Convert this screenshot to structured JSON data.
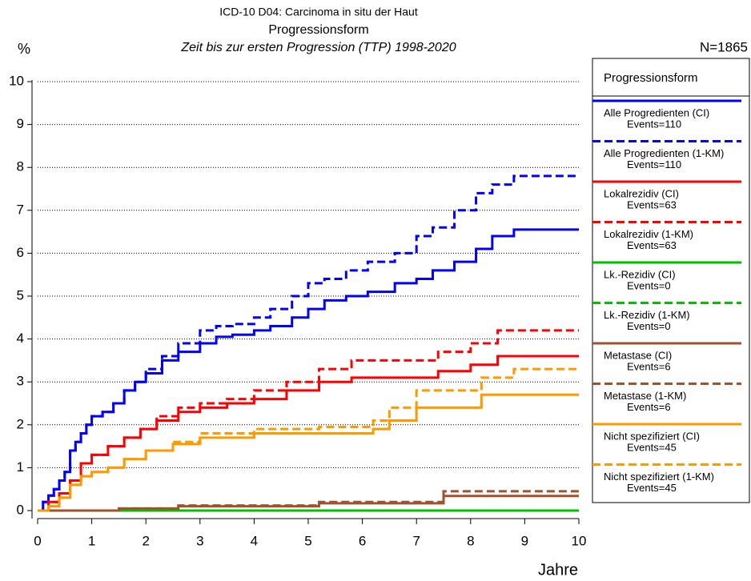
{
  "chart_data": {
    "type": "step",
    "title": "ICD-10 D04: Carcinoma in situ der Haut",
    "subtitle": "Progressionsform",
    "subtitle2": "Zeit bis zur ersten Progression (TTP) 1998-2020",
    "ylabel": "%",
    "xlabel": "Jahre",
    "n_label": "N=1865",
    "legend_title": "Progressionsform",
    "grid": true,
    "xlim": [
      0,
      10
    ],
    "xticks": [
      0,
      1,
      2,
      3,
      4,
      5,
      6,
      7,
      8,
      9,
      10
    ],
    "ylim": [
      0,
      10
    ],
    "yticks": [
      0,
      1,
      2,
      3,
      4,
      5,
      6,
      7,
      8,
      9,
      10
    ],
    "series": [
      {
        "name": "Alle Progredienten (CI)",
        "events": "Events=110",
        "color": "#0000ff",
        "dash": false,
        "x": [
          0,
          0.1,
          0.2,
          0.3,
          0.4,
          0.5,
          0.6,
          0.7,
          0.8,
          0.9,
          1.0,
          1.2,
          1.4,
          1.6,
          1.8,
          2.0,
          2.3,
          2.6,
          3.0,
          3.3,
          3.6,
          4.0,
          4.3,
          4.7,
          5.0,
          5.3,
          5.7,
          6.1,
          6.6,
          7.0,
          7.3,
          7.7,
          8.1,
          8.4,
          8.8,
          10
        ],
        "values": [
          0,
          0.2,
          0.35,
          0.5,
          0.7,
          0.9,
          1.4,
          1.6,
          1.8,
          2.0,
          2.2,
          2.3,
          2.5,
          2.8,
          3.0,
          3.2,
          3.5,
          3.7,
          3.9,
          4.05,
          4.1,
          4.2,
          4.3,
          4.5,
          4.7,
          4.9,
          5.0,
          5.1,
          5.3,
          5.4,
          5.6,
          5.8,
          6.1,
          6.4,
          6.55,
          6.55
        ]
      },
      {
        "name": "Alle Progredienten (1-KM)",
        "events": "Events=110",
        "color": "#0000ff",
        "dash": true,
        "x": [
          0,
          0.1,
          0.2,
          0.3,
          0.4,
          0.5,
          0.6,
          0.7,
          0.8,
          0.9,
          1.0,
          1.2,
          1.4,
          1.6,
          1.8,
          2.0,
          2.3,
          2.6,
          3.0,
          3.3,
          3.6,
          4.0,
          4.3,
          4.7,
          5.0,
          5.3,
          5.7,
          6.1,
          6.6,
          7.0,
          7.3,
          7.7,
          8.1,
          8.4,
          8.8,
          10
        ],
        "values": [
          0,
          0.2,
          0.35,
          0.5,
          0.7,
          0.9,
          1.4,
          1.6,
          1.8,
          2.0,
          2.2,
          2.3,
          2.5,
          2.8,
          3.0,
          3.3,
          3.6,
          3.9,
          4.2,
          4.3,
          4.35,
          4.5,
          4.7,
          5.0,
          5.3,
          5.4,
          5.6,
          5.8,
          6.0,
          6.4,
          6.6,
          7.0,
          7.4,
          7.6,
          7.8,
          7.8
        ]
      },
      {
        "name": "Lokalrezidiv (CI)",
        "events": "Events=63",
        "color": "#ff0000",
        "dash": false,
        "x": [
          0,
          0.2,
          0.4,
          0.6,
          0.8,
          1.0,
          1.3,
          1.6,
          1.9,
          2.2,
          2.6,
          3.0,
          3.5,
          4.0,
          4.6,
          5.2,
          5.8,
          6.5,
          7.4,
          8.0,
          8.5,
          10
        ],
        "values": [
          0,
          0.2,
          0.4,
          0.7,
          1.1,
          1.3,
          1.5,
          1.7,
          1.9,
          2.1,
          2.3,
          2.4,
          2.5,
          2.6,
          2.8,
          3.0,
          3.1,
          3.1,
          3.25,
          3.4,
          3.6,
          3.6
        ]
      },
      {
        "name": "Lokalrezidiv (1-KM)",
        "events": "Events=63",
        "color": "#ff0000",
        "dash": true,
        "x": [
          0,
          0.2,
          0.4,
          0.6,
          0.8,
          1.0,
          1.3,
          1.6,
          1.9,
          2.2,
          2.6,
          3.0,
          3.5,
          4.0,
          4.6,
          5.2,
          5.8,
          6.5,
          7.4,
          8.0,
          8.5,
          10
        ],
        "values": [
          0,
          0.2,
          0.4,
          0.7,
          1.1,
          1.3,
          1.5,
          1.7,
          1.9,
          2.2,
          2.4,
          2.5,
          2.6,
          2.8,
          3.0,
          3.3,
          3.5,
          3.5,
          3.7,
          3.9,
          4.2,
          4.2
        ]
      },
      {
        "name": "Lk.-Rezidiv (CI)",
        "events": "Events=0",
        "color": "#00c000",
        "dash": false,
        "x": [
          0,
          10
        ],
        "values": [
          0,
          0
        ]
      },
      {
        "name": "Lk.-Rezidiv (1-KM)",
        "events": "Events=0",
        "color": "#00c000",
        "dash": true,
        "x": [
          0,
          10
        ],
        "values": [
          0,
          0
        ]
      },
      {
        "name": "Metastase (CI)",
        "events": "Events=6",
        "color": "#a0522d",
        "dash": false,
        "x": [
          0,
          1.5,
          2.6,
          5.2,
          7.5,
          10
        ],
        "values": [
          0,
          0.05,
          0.1,
          0.17,
          0.34,
          0.34
        ]
      },
      {
        "name": "Metastase (1-KM)",
        "events": "Events=6",
        "color": "#a0522d",
        "dash": true,
        "x": [
          0,
          1.5,
          2.6,
          5.2,
          7.5,
          10
        ],
        "values": [
          0,
          0.05,
          0.12,
          0.2,
          0.45,
          0.45
        ]
      },
      {
        "name": "Nicht spezifiziert (CI)",
        "events": "Events=45",
        "color": "#ff9900",
        "dash": false,
        "x": [
          0,
          0.2,
          0.4,
          0.6,
          0.8,
          1.0,
          1.3,
          1.6,
          2.0,
          2.5,
          3.0,
          4.0,
          5.2,
          6.2,
          6.5,
          7.0,
          8.2,
          10
        ],
        "values": [
          0,
          0.1,
          0.3,
          0.6,
          0.8,
          0.9,
          1.0,
          1.2,
          1.4,
          1.55,
          1.7,
          1.8,
          1.8,
          1.9,
          2.1,
          2.4,
          2.7,
          2.7
        ]
      },
      {
        "name": "Nicht spezifiziert (1-KM)",
        "events": "Events=45",
        "color": "#ff9900",
        "dash": true,
        "x": [
          0,
          0.2,
          0.4,
          0.6,
          0.8,
          1.0,
          1.3,
          1.6,
          2.0,
          2.5,
          3.0,
          4.0,
          5.2,
          6.2,
          6.5,
          7.0,
          8.2,
          8.8,
          10
        ],
        "values": [
          0,
          0.1,
          0.3,
          0.6,
          0.8,
          0.9,
          1.0,
          1.2,
          1.4,
          1.6,
          1.8,
          1.9,
          1.95,
          2.1,
          2.4,
          2.8,
          3.1,
          3.3,
          3.3
        ]
      }
    ]
  }
}
